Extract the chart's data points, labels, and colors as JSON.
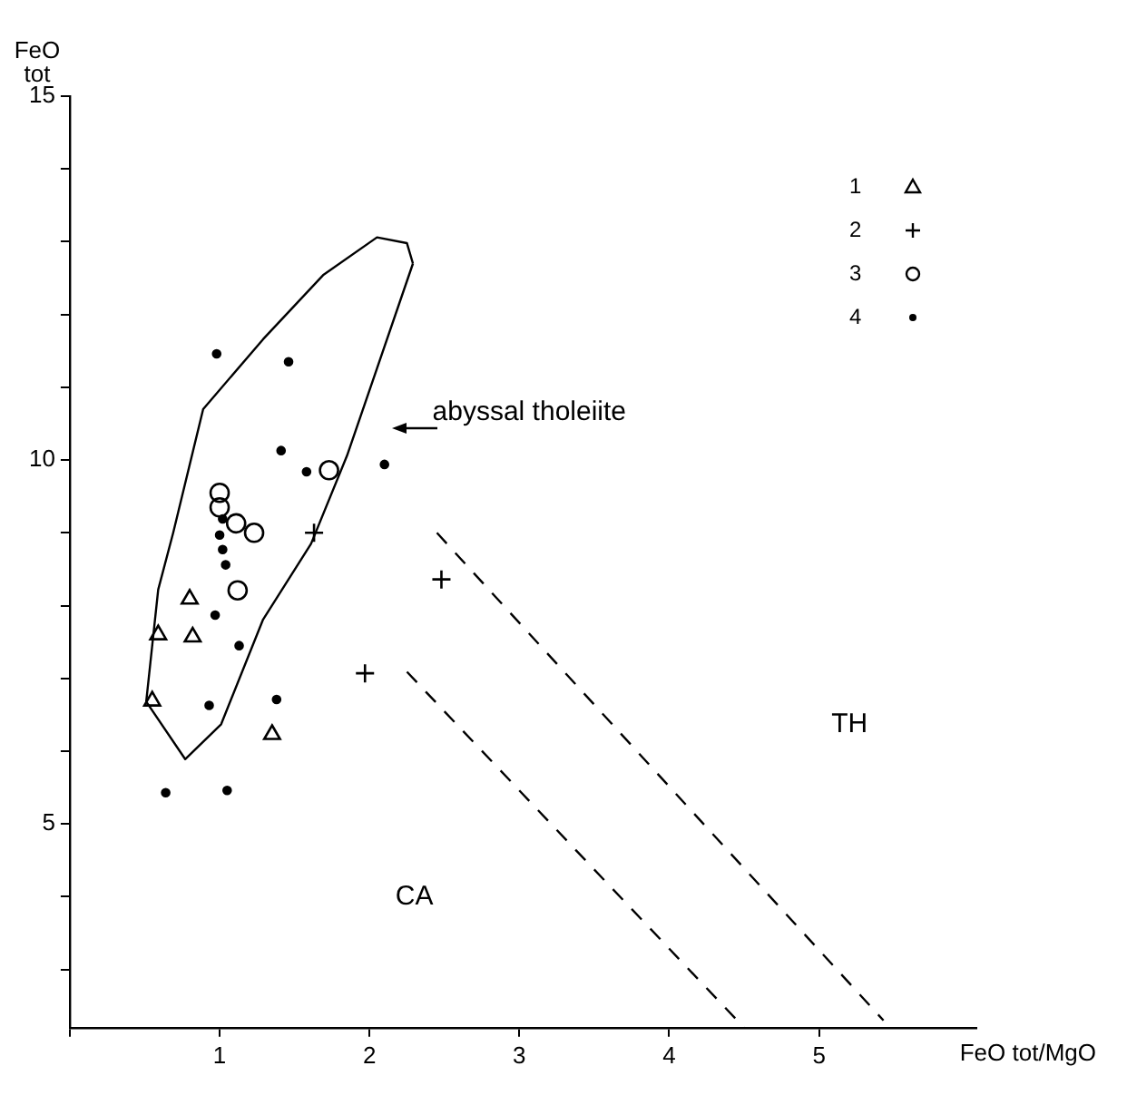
{
  "chart_data": {
    "type": "scatter",
    "xlabel": "FeO tot/MgO",
    "ylabel": "FeO tot",
    "xlim": [
      0,
      6.05
    ],
    "xticks": [
      {
        "value": 0,
        "label": null
      },
      1,
      2,
      3,
      4,
      5
    ],
    "ylim": [
      2.2,
      15
    ],
    "yticks": [
      {
        "value": 3,
        "label": null
      },
      {
        "value": 4,
        "label": null
      },
      5,
      {
        "value": 6,
        "label": null
      },
      {
        "value": 7,
        "label": null
      },
      {
        "value": 8,
        "label": null
      },
      {
        "value": 9,
        "label": null
      },
      10,
      {
        "value": 11,
        "label": null
      },
      {
        "value": 12,
        "label": null
      },
      {
        "value": 13,
        "label": null
      },
      {
        "value": 14,
        "label": null
      },
      15
    ],
    "grid": false,
    "legend": "top right",
    "series": [
      {
        "name": "1",
        "marker": "triangle",
        "color": "#000000",
        "x": [
          0.8,
          0.59,
          0.82,
          0.55,
          1.35
        ],
        "values": [
          8.09,
          7.6,
          7.57,
          6.69,
          6.23
        ]
      },
      {
        "name": "2",
        "marker": "cross",
        "color": "#000000",
        "x": [
          1.97,
          2.48,
          1.63
        ],
        "values": [
          7.07,
          8.36,
          9.0
        ]
      },
      {
        "name": "3",
        "marker": "circle",
        "color": "#000000",
        "x": [
          1.0,
          1.0,
          1.11,
          1.23,
          1.73,
          1.12
        ],
        "values": [
          9.55,
          9.35,
          9.13,
          9.0,
          9.86,
          8.21
        ]
      },
      {
        "name": "4",
        "marker": "dot",
        "color": "#000000",
        "x": [
          0.98,
          1.46,
          1.41,
          1.58,
          2.1,
          1.02,
          1.0,
          1.02,
          1.04,
          0.97,
          1.13,
          0.93,
          1.38,
          0.64,
          1.05
        ],
        "values": [
          11.46,
          11.35,
          10.13,
          9.84,
          9.94,
          9.19,
          8.97,
          8.77,
          8.56,
          7.87,
          7.45,
          6.63,
          6.71,
          5.43,
          5.46
        ]
      },
      {
        "type": "line",
        "marker": "none",
        "line_style": "solid",
        "color": "#000000",
        "x": [
          0.51,
          0.59,
          0.69,
          0.89,
          1.29,
          1.69,
          2.05,
          2.25,
          2.29
        ],
        "values": [
          6.68,
          8.22,
          9.0,
          10.7,
          11.66,
          12.54,
          13.06,
          12.98,
          12.7
        ]
      },
      {
        "type": "line",
        "marker": "none",
        "line_style": "solid",
        "color": "#000000",
        "x": [
          0.51,
          0.77,
          1.01,
          1.29,
          1.61,
          1.85,
          2.05,
          2.29
        ],
        "values": [
          6.68,
          5.89,
          6.37,
          7.81,
          8.85,
          10.06,
          11.26,
          12.7
        ]
      },
      {
        "type": "line",
        "marker": "none",
        "line_style": "dashed",
        "color": "#000000",
        "x": [
          2.45,
          5.43
        ],
        "values": [
          9.0,
          2.3
        ]
      },
      {
        "type": "line",
        "marker": "none",
        "line_style": "dashed",
        "color": "#000000",
        "x": [
          2.25,
          4.5
        ],
        "values": [
          7.09,
          2.2
        ]
      }
    ],
    "annotations": [
      "abyssal tholeiite",
      "TH",
      "CA"
    ]
  }
}
